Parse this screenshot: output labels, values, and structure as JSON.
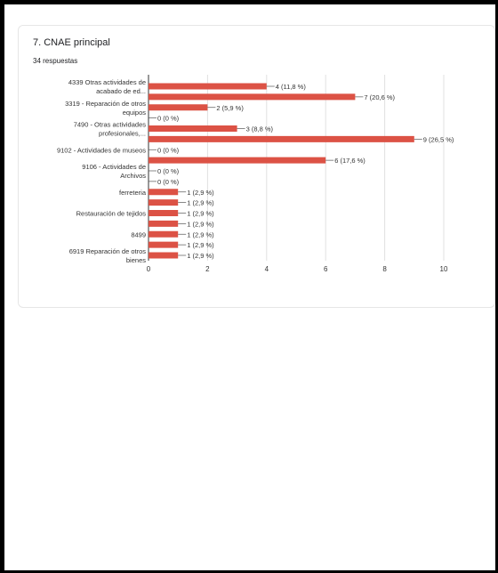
{
  "question": {
    "title": "7. CNAE principal",
    "responses": "34 respuestas"
  },
  "chart_data": {
    "type": "bar",
    "orientation": "horizontal",
    "categories": [
      [
        "4339 Otras actividades de",
        "acabado de ed..."
      ],
      [
        ""
      ],
      [
        "3319 - Reparación de otros",
        "equipos"
      ],
      [
        ""
      ],
      [
        "7490 - Otras actividades",
        "profesionales,..."
      ],
      [
        ""
      ],
      [
        "9102 - Actividades de museos"
      ],
      [
        ""
      ],
      [
        "9106 - Actividades de",
        "Archivos"
      ],
      [
        ""
      ],
      [
        "ferreteria"
      ],
      [
        ""
      ],
      [
        "Restauración de tejidos"
      ],
      [
        ""
      ],
      [
        "8499"
      ],
      [
        ""
      ],
      [
        "6919 Reparación de otros",
        "bienes"
      ]
    ],
    "values": [
      4,
      7,
      2,
      0,
      3,
      9,
      0,
      6,
      0,
      0,
      1,
      1,
      1,
      1,
      1,
      1,
      1
    ],
    "data_labels": [
      "4 (11,8 %)",
      "7 (20,6 %)",
      "2 (5,9 %)",
      "0 (0 %)",
      "3 (8,8 %)",
      "9 (26,5 %)",
      "0 (0 %)",
      "6 (17,6 %)",
      "0 (0 %)",
      "0 (0 %)",
      "1 (2,9 %)",
      "1 (2,9 %)",
      "1 (2,9 %)",
      "1 (2,9 %)",
      "1 (2,9 %)",
      "1 (2,9 %)",
      "1 (2,9 %)"
    ],
    "xticks": [
      0,
      2,
      4,
      6,
      8,
      10
    ],
    "xlim": [
      0,
      10
    ],
    "grid": true,
    "bar_color": "#dc5245",
    "grid_color": "#e0e0e0",
    "text_color": "#333333"
  }
}
